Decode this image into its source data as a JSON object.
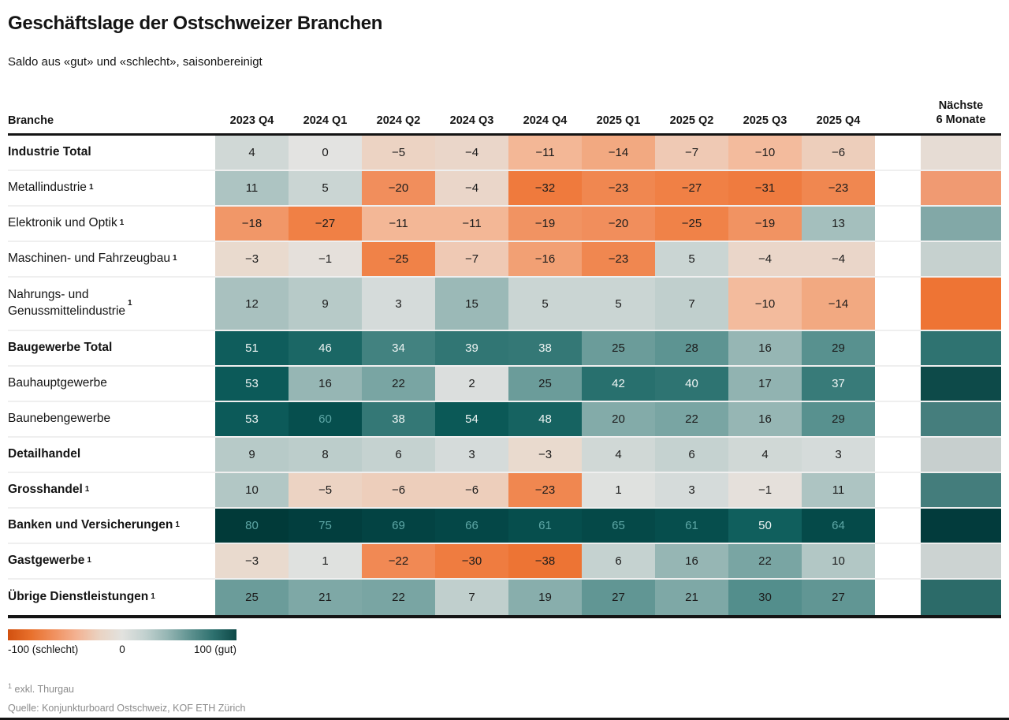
{
  "title": "Geschäftslage der Ostschweizer Branchen",
  "subtitle": "Saldo aus «gut» und «schlecht», saisonbereinigt",
  "chart_data": {
    "type": "heatmap",
    "row_header": "Branche",
    "columns": [
      "2023 Q4",
      "2024 Q1",
      "2024 Q2",
      "2024 Q3",
      "2024 Q4",
      "2025 Q1",
      "2025 Q2",
      "2025 Q3",
      "2025 Q4"
    ],
    "next_column_label": "Nächste\n6 Monate",
    "footnote_mark": "1",
    "value_range": [
      -100,
      100
    ],
    "rows": [
      {
        "label": "Industrie Total",
        "bold": true,
        "footnote": false,
        "values": [
          4,
          0,
          -5,
          -4,
          -11,
          -14,
          -7,
          -10,
          -6
        ],
        "next_color": "#e6dcd4"
      },
      {
        "label": "Metallindustrie",
        "bold": false,
        "footnote": true,
        "values": [
          11,
          5,
          -20,
          -4,
          -32,
          -23,
          -27,
          -31,
          -23
        ],
        "next_color": "#f09a72"
      },
      {
        "label": "Elektronik und Optik",
        "bold": false,
        "footnote": true,
        "values": [
          -18,
          -27,
          -11,
          -11,
          -19,
          -20,
          -25,
          -19,
          13
        ],
        "next_color": "#82a8a7"
      },
      {
        "label": "Maschinen- und Fahrzeugbau",
        "bold": false,
        "footnote": true,
        "values": [
          -3,
          -1,
          -25,
          -7,
          -16,
          -23,
          5,
          -4,
          -4
        ],
        "next_color": "#c6d1cf"
      },
      {
        "label": "Nahrungs- und\nGenussmittelindustrie",
        "bold": false,
        "footnote": true,
        "tall": true,
        "values": [
          12,
          9,
          3,
          15,
          5,
          5,
          7,
          -10,
          -14
        ],
        "next_color": "#ee7434"
      },
      {
        "label": "Baugewerbe Total",
        "bold": true,
        "footnote": false,
        "values": [
          51,
          46,
          34,
          39,
          38,
          25,
          28,
          16,
          29
        ],
        "next_color": "#2f7371"
      },
      {
        "label": "Bauhauptgewerbe",
        "bold": false,
        "footnote": false,
        "values": [
          53,
          16,
          22,
          2,
          25,
          42,
          40,
          17,
          37
        ],
        "next_color": "#0d4a49"
      },
      {
        "label": "Baunebengewerbe",
        "bold": false,
        "footnote": false,
        "values": [
          53,
          60,
          38,
          54,
          48,
          20,
          22,
          16,
          29
        ],
        "next_color": "#457e7d"
      },
      {
        "label": "Detailhandel",
        "bold": true,
        "footnote": false,
        "values": [
          9,
          8,
          6,
          3,
          -3,
          4,
          6,
          4,
          3
        ],
        "next_color": "#c7cfce"
      },
      {
        "label": "Grosshandel",
        "bold": true,
        "footnote": true,
        "values": [
          10,
          -5,
          -6,
          -6,
          -23,
          1,
          3,
          -1,
          11
        ],
        "next_color": "#447d7c"
      },
      {
        "label": "Banken und Versicherungen",
        "bold": true,
        "footnote": true,
        "values": [
          80,
          75,
          69,
          66,
          61,
          65,
          61,
          50,
          64
        ],
        "next_color": "#023b3c"
      },
      {
        "label": "Gastgewerbe",
        "bold": true,
        "footnote": true,
        "values": [
          -3,
          1,
          -22,
          -30,
          -38,
          6,
          16,
          22,
          10
        ],
        "next_color": "#ccd3d2"
      },
      {
        "label": "Übrige Dienstleistungen",
        "bold": true,
        "footnote": true,
        "values": [
          25,
          21,
          22,
          7,
          19,
          27,
          21,
          30,
          27
        ],
        "next_color": "#2c6b69"
      }
    ]
  },
  "color_scale": {
    "anchors": [
      [
        -100,
        "#d14e11"
      ],
      [
        -38,
        "#ed7434"
      ],
      [
        -30,
        "#ef7c40"
      ],
      [
        -25,
        "#f08248"
      ],
      [
        -20,
        "#f18e5c"
      ],
      [
        -15,
        "#f2a57a"
      ],
      [
        -10,
        "#f3bb9d"
      ],
      [
        -5,
        "#ecd3c3"
      ],
      [
        -2,
        "#e7ddd4"
      ],
      [
        0,
        "#e3e3e1"
      ],
      [
        2,
        "#dbdedd"
      ],
      [
        5,
        "#cad5d3"
      ],
      [
        10,
        "#b2c7c5"
      ],
      [
        15,
        "#9bb9b7"
      ],
      [
        20,
        "#83aba9"
      ],
      [
        25,
        "#6b9c9a"
      ],
      [
        30,
        "#538e8c"
      ],
      [
        35,
        "#3e7f7d"
      ],
      [
        40,
        "#2e7472"
      ],
      [
        45,
        "#1e6967"
      ],
      [
        50,
        "#105f5d"
      ],
      [
        55,
        "#0a5756"
      ],
      [
        60,
        "#064f4e"
      ],
      [
        70,
        "#034242"
      ],
      [
        80,
        "#013a39"
      ],
      [
        100,
        "#003032"
      ]
    ],
    "text_dark": "#1c1c1c",
    "text_light": "#eef4f3",
    "text_teal": "#5ea7a6"
  },
  "legend": {
    "min_label": "-100 (schlecht)",
    "mid_label": "0",
    "max_label": "100 (gut)",
    "gradient": [
      "#d1500f",
      "#e8702c",
      "#f0905e",
      "#f3b292",
      "#ead3c2",
      "#e2e2df",
      "#c2d1cf",
      "#94b5b3",
      "#5d918f",
      "#2d706e",
      "#0e4948"
    ]
  },
  "footnotes": {
    "note1_sup": "1",
    "note1_text": "exkl. Thurgau",
    "source": "Quelle: Konjunkturboard Ostschweiz, KOF ETH Zürich"
  }
}
